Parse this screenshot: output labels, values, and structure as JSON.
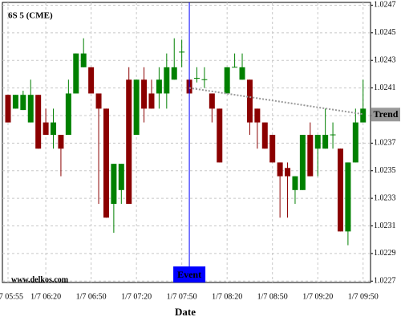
{
  "chart_data": {
    "type": "candlestick",
    "title": "6S 5 (CME)",
    "watermark": "www.delkos.com",
    "x_label": "Date",
    "categories": [
      "1/7 05:55",
      null,
      null,
      null,
      null,
      "1/7 06:20",
      null,
      null,
      null,
      null,
      null,
      "1/7 06:50",
      null,
      null,
      null,
      null,
      null,
      "1/7 07:20",
      null,
      null,
      null,
      null,
      null,
      "1/7 07:50",
      null,
      null,
      null,
      null,
      null,
      "1/7 08:20",
      null,
      null,
      null,
      null,
      null,
      "1/7 08:50",
      null,
      null,
      null,
      null,
      null,
      "1/7 09:20",
      null,
      null,
      null,
      null,
      null,
      "1/7 09:50"
    ],
    "open": [
      1.02405,
      1.02395,
      1.02394,
      1.02385,
      1.02405,
      1.02385,
      1.02376,
      1.02376,
      1.02376,
      1.02406,
      1.02425,
      1.02425,
      1.02406,
      1.02395,
      1.02326,
      1.02336,
      1.02416,
      1.02376,
      1.02416,
      1.02406,
      1.02406,
      1.02406,
      1.02416,
      1.02436,
      1.02416,
      1.02417,
      1.02416,
      1.02406,
      1.02395,
      1.02406,
      1.02425,
      1.02416,
      1.02416,
      1.02395,
      1.02385,
      1.02376,
      1.02356,
      1.02352,
      1.02336,
      1.02336,
      1.02376,
      1.02366,
      1.02366,
      1.02376,
      1.02366,
      1.02306,
      1.02356,
      1.02385
    ],
    "high": [
      1.02405,
      1.02405,
      1.02408,
      1.02416,
      1.02405,
      1.02395,
      1.02395,
      1.02376,
      1.02416,
      1.02435,
      1.02446,
      1.02425,
      1.02406,
      1.02395,
      1.02355,
      1.02355,
      1.02425,
      1.02416,
      1.02425,
      1.02416,
      1.02425,
      1.02435,
      1.02446,
      1.02445,
      1.02416,
      1.02425,
      1.02425,
      1.02406,
      1.02395,
      1.02425,
      1.02435,
      1.02435,
      1.02416,
      1.02395,
      1.02385,
      1.02376,
      1.02356,
      1.02356,
      1.02346,
      1.02376,
      1.02385,
      1.02376,
      1.02395,
      1.02385,
      1.02366,
      1.02356,
      1.02395,
      1.02416
    ],
    "low": [
      1.02385,
      1.02395,
      1.02394,
      1.02385,
      1.02366,
      1.02376,
      1.02366,
      1.02346,
      1.02376,
      1.02406,
      1.02425,
      1.02406,
      1.02326,
      1.02316,
      1.02305,
      1.02326,
      1.02326,
      1.02376,
      1.02385,
      1.02395,
      1.02395,
      1.02395,
      1.02416,
      1.02425,
      1.02406,
      1.02414,
      1.0241,
      1.02385,
      1.02356,
      1.02406,
      1.02425,
      1.02416,
      1.02376,
      1.02366,
      1.02366,
      1.02356,
      1.02316,
      1.02316,
      1.02326,
      1.02336,
      1.02346,
      1.02346,
      1.02366,
      1.02366,
      1.02306,
      1.02296,
      1.02356,
      1.02385
    ],
    "close": [
      1.02385,
      1.02405,
      1.02405,
      1.02405,
      1.02366,
      1.02376,
      1.02385,
      1.02366,
      1.02406,
      1.02435,
      1.02435,
      1.02406,
      1.02395,
      1.02316,
      1.02355,
      1.02355,
      1.02326,
      1.02416,
      1.02395,
      1.02395,
      1.02416,
      1.02425,
      1.02425,
      1.02436,
      1.02406,
      1.02417,
      1.02416,
      1.02395,
      1.02356,
      1.02425,
      1.02425,
      1.02425,
      1.02385,
      1.02385,
      1.02366,
      1.02356,
      1.02346,
      1.02346,
      1.02346,
      1.02376,
      1.02346,
      1.02376,
      1.02376,
      1.02376,
      1.02306,
      1.02356,
      1.02385,
      1.02395
    ],
    "up_color": "#008000",
    "down_color": "#8b0000",
    "trend": {
      "label": "Trend",
      "color": "#999999",
      "values": [
        null,
        null,
        null,
        null,
        null,
        null,
        null,
        null,
        null,
        null,
        null,
        null,
        null,
        null,
        null,
        null,
        null,
        null,
        null,
        null,
        null,
        null,
        null,
        null,
        1.0241,
        null,
        null,
        null,
        null,
        null,
        null,
        null,
        null,
        null,
        null,
        null,
        null,
        null,
        null,
        null,
        null,
        null,
        null,
        null,
        null,
        null,
        null,
        1.02391
      ]
    },
    "event": {
      "label": "Event",
      "color": "#0000ff"
    },
    "ylim": [
      1.02269,
      1.02472
    ],
    "yticks": [
      1.0227,
      1.0229,
      1.0231,
      1.0233,
      1.0235,
      1.0237,
      1.0239,
      1.0241,
      1.0243,
      1.0245,
      1.0247
    ],
    "grid": true
  }
}
